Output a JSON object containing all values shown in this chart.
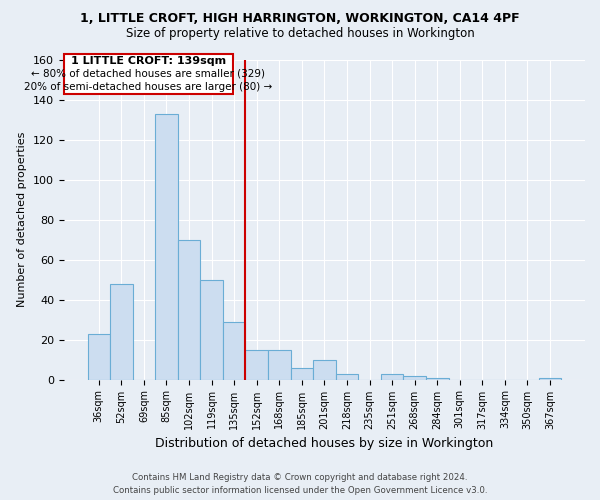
{
  "title": "1, LITTLE CROFT, HIGH HARRINGTON, WORKINGTON, CA14 4PF",
  "subtitle": "Size of property relative to detached houses in Workington",
  "xlabel": "Distribution of detached houses by size in Workington",
  "ylabel": "Number of detached properties",
  "bar_labels": [
    "36sqm",
    "52sqm",
    "69sqm",
    "85sqm",
    "102sqm",
    "119sqm",
    "135sqm",
    "152sqm",
    "168sqm",
    "185sqm",
    "201sqm",
    "218sqm",
    "235sqm",
    "251sqm",
    "268sqm",
    "284sqm",
    "301sqm",
    "317sqm",
    "334sqm",
    "350sqm",
    "367sqm"
  ],
  "bar_values": [
    23,
    48,
    0,
    133,
    70,
    50,
    29,
    15,
    15,
    6,
    10,
    3,
    0,
    3,
    2,
    1,
    0,
    0,
    0,
    0,
    1
  ],
  "bar_color": "#ccddf0",
  "bar_edge_color": "#6aadd5",
  "vline_color": "#cc0000",
  "ylim": [
    0,
    160
  ],
  "yticks": [
    0,
    20,
    40,
    60,
    80,
    100,
    120,
    140,
    160
  ],
  "annotation_title": "1 LITTLE CROFT: 139sqm",
  "annotation_line1": "← 80% of detached houses are smaller (329)",
  "annotation_line2": "20% of semi-detached houses are larger (80) →",
  "annotation_box_facecolor": "#ffffff",
  "annotation_box_edgecolor": "#cc0000",
  "footer1": "Contains HM Land Registry data © Crown copyright and database right 2024.",
  "footer2": "Contains public sector information licensed under the Open Government Licence v3.0.",
  "background_color": "#e8eef5",
  "plot_background": "#e8eef5",
  "grid_color": "#ffffff",
  "vline_index": 6.5
}
